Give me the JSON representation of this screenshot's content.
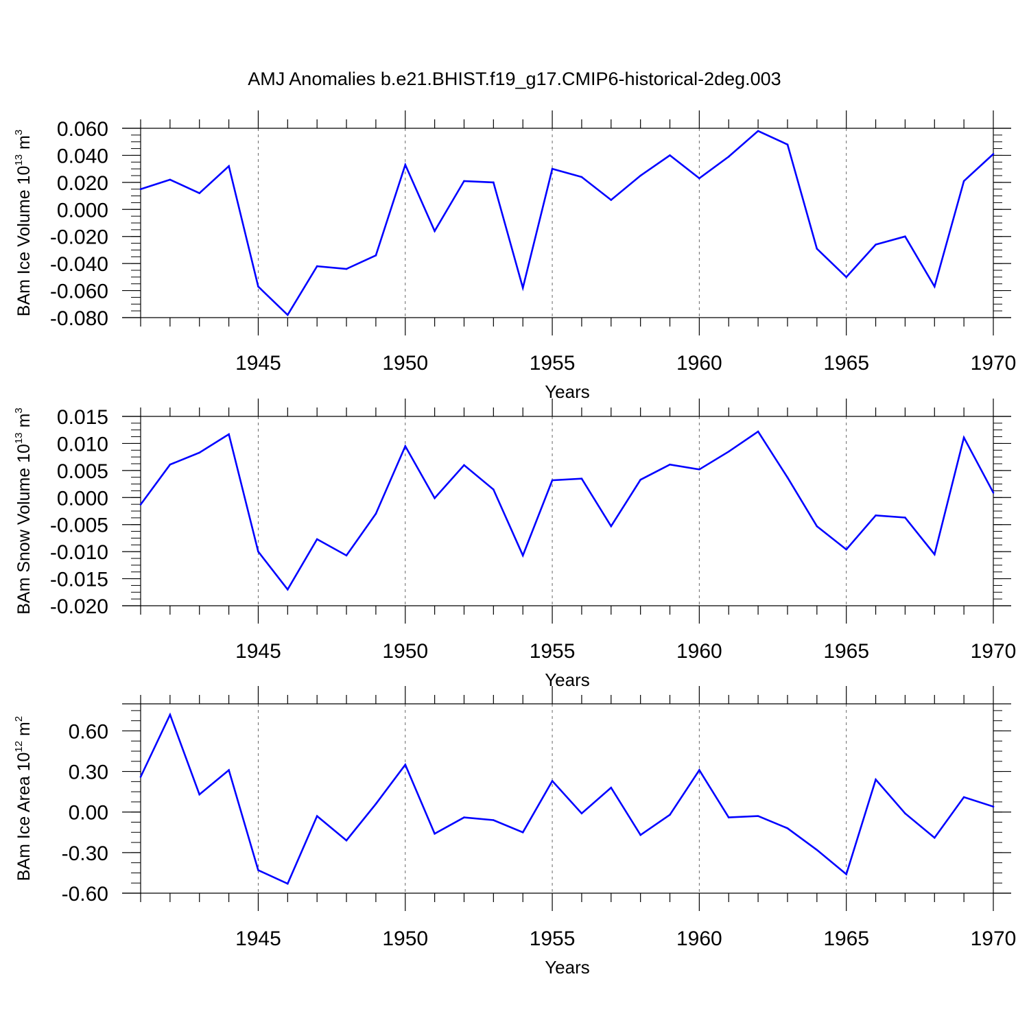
{
  "chart_data": [
    {
      "type": "line",
      "title": "AMJ Anomalies b.e21.BHIST.f19_g17.CMIP6-historical-2deg.003",
      "ylabel": {
        "main": "BAm Ice Volume 10",
        "exp": "13",
        "unit": " m",
        "unit_exp": "3"
      },
      "xlabel": "Years",
      "xlim": [
        1941,
        1970
      ],
      "ylim": [
        -0.08,
        0.06
      ],
      "yticks": [
        0.06,
        0.04,
        0.02,
        0.0,
        -0.02,
        -0.04,
        -0.06,
        -0.08
      ],
      "ytick_labels": [
        "0.060",
        "0.040",
        "0.020",
        "0.000",
        "-0.020",
        "-0.040",
        "-0.060",
        "-0.080"
      ],
      "xticks": [
        1945,
        1950,
        1955,
        1960,
        1965,
        1970
      ],
      "xtick_labels": [
        "1945",
        "1950",
        "1955",
        "1960",
        "1965",
        "1970"
      ],
      "grid": "vertical dashed at labeled years",
      "color": "#0000ff",
      "x": [
        1941,
        1942,
        1943,
        1944,
        1945,
        1946,
        1947,
        1948,
        1949,
        1950,
        1951,
        1952,
        1953,
        1954,
        1955,
        1956,
        1957,
        1958,
        1959,
        1960,
        1961,
        1962,
        1963,
        1964,
        1965,
        1966,
        1967,
        1968,
        1969,
        1970
      ],
      "values": [
        0.015,
        0.022,
        0.012,
        0.032,
        -0.057,
        -0.078,
        -0.042,
        -0.044,
        -0.034,
        0.033,
        -0.016,
        0.021,
        0.02,
        -0.058,
        0.03,
        0.024,
        0.007,
        0.025,
        0.04,
        0.023,
        0.039,
        0.058,
        0.048,
        -0.029,
        -0.05,
        -0.026,
        -0.02,
        -0.057,
        0.021,
        0.041
      ]
    },
    {
      "type": "line",
      "ylabel": {
        "main": "BAm Snow Volume 10",
        "exp": "13",
        "unit": " m",
        "unit_exp": "3"
      },
      "xlabel": "Years",
      "xlim": [
        1941,
        1970
      ],
      "ylim": [
        -0.02,
        0.015
      ],
      "yticks": [
        0.015,
        0.01,
        0.005,
        0.0,
        -0.005,
        -0.01,
        -0.015,
        -0.02
      ],
      "ytick_labels": [
        "0.015",
        "0.010",
        "0.005",
        "0.000",
        "-0.005",
        "-0.010",
        "-0.015",
        "-0.020"
      ],
      "xticks": [
        1945,
        1950,
        1955,
        1960,
        1965,
        1970
      ],
      "xtick_labels": [
        "1945",
        "1950",
        "1955",
        "1960",
        "1965",
        "1970"
      ],
      "grid": "vertical dashed at labeled years",
      "color": "#0000ff",
      "x": [
        1941,
        1942,
        1943,
        1944,
        1945,
        1946,
        1947,
        1948,
        1949,
        1950,
        1951,
        1952,
        1953,
        1954,
        1955,
        1956,
        1957,
        1958,
        1959,
        1960,
        1961,
        1962,
        1963,
        1964,
        1965,
        1966,
        1967,
        1968,
        1969,
        1970
      ],
      "values": [
        -0.0013,
        0.0061,
        0.0083,
        0.0117,
        -0.01,
        -0.017,
        -0.0077,
        -0.0107,
        -0.003,
        0.0095,
        -0.0001,
        0.006,
        0.0015,
        -0.0107,
        0.0032,
        0.0035,
        -0.0053,
        0.0033,
        0.0061,
        0.0052,
        0.0085,
        0.0122,
        0.0037,
        -0.0053,
        -0.0096,
        -0.0033,
        -0.0037,
        -0.0105,
        0.0111,
        0.0009
      ]
    },
    {
      "type": "line",
      "ylabel": {
        "main": "BAm Ice Area 10",
        "exp": "12",
        "unit": " m",
        "unit_exp": "2"
      },
      "xlabel": "Years",
      "xlim": [
        1941,
        1970
      ],
      "ylim": [
        -0.6,
        0.8
      ],
      "yticks": [
        0.6,
        0.3,
        0.0,
        -0.3,
        -0.6
      ],
      "ytick_labels": [
        "0.60",
        "0.30",
        "0.00",
        "-0.30",
        "-0.60"
      ],
      "xticks": [
        1945,
        1950,
        1955,
        1960,
        1965,
        1970
      ],
      "xtick_labels": [
        "1945",
        "1950",
        "1955",
        "1960",
        "1965",
        "1970"
      ],
      "grid": "vertical dashed at labeled years",
      "color": "#0000ff",
      "x": [
        1941,
        1942,
        1943,
        1944,
        1945,
        1946,
        1947,
        1948,
        1949,
        1950,
        1951,
        1952,
        1953,
        1954,
        1955,
        1956,
        1957,
        1958,
        1959,
        1960,
        1961,
        1962,
        1963,
        1964,
        1965,
        1966,
        1967,
        1968,
        1969,
        1970
      ],
      "values": [
        0.26,
        0.72,
        0.13,
        0.31,
        -0.43,
        -0.53,
        -0.03,
        -0.21,
        0.06,
        0.35,
        -0.16,
        -0.04,
        -0.06,
        -0.15,
        0.23,
        -0.01,
        0.18,
        -0.17,
        -0.02,
        0.31,
        -0.04,
        -0.03,
        -0.12,
        -0.28,
        -0.46,
        0.24,
        -0.01,
        -0.19,
        0.11,
        0.04
      ]
    }
  ]
}
